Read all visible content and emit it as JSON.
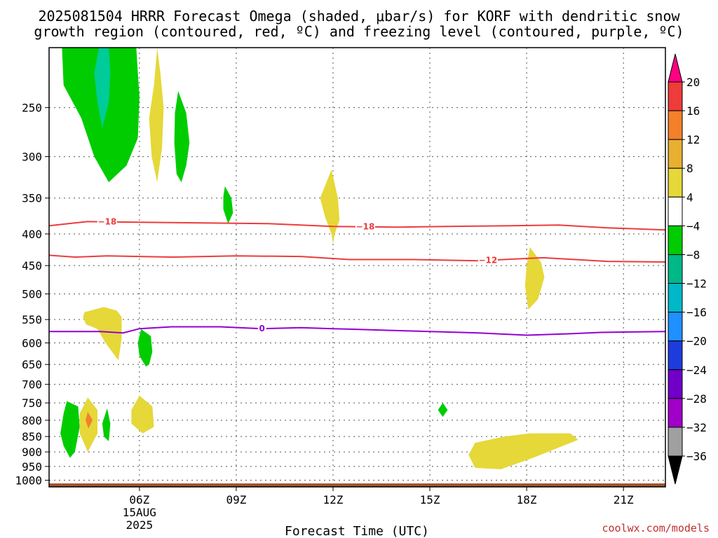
{
  "header": {
    "title_line1": "2025081504 HRRR Forecast Omega (shaded, μbar/s) for KORF with dendritic snow",
    "title_line2": "growth region (contoured, red, ºC) and freezing level (contoured, purple, ºC)"
  },
  "footer": {
    "credit": "coolwx.com/models"
  },
  "chart_data": {
    "type": "contour",
    "title": "2025081504 HRRR Forecast Omega (shaded, μbar/s) for KORF with dendritic snow growth region (contoured, red, ºC) and freezing level (contoured, purple, ºC)",
    "xlabel": "Forecast Time (UTC)",
    "ylabel": "",
    "x_axis": {
      "unit": "hours since 2025-08-15 00Z",
      "range": [
        3.2,
        22.3
      ],
      "ticks": [
        {
          "x": 6,
          "label": "06Z",
          "sublabel1": "15AUG",
          "sublabel2": "2025"
        },
        {
          "x": 9,
          "label": "09Z"
        },
        {
          "x": 12,
          "label": "12Z"
        },
        {
          "x": 15,
          "label": "15Z"
        },
        {
          "x": 18,
          "label": "18Z"
        },
        {
          "x": 21,
          "label": "21Z"
        }
      ]
    },
    "y_axis": {
      "unit": "hPa",
      "scale": "log",
      "reversed": true,
      "range": [
        1025,
        200
      ],
      "ticks": [
        250,
        300,
        350,
        400,
        450,
        500,
        550,
        600,
        650,
        700,
        750,
        800,
        850,
        900,
        950,
        1000
      ]
    },
    "grid": true,
    "ground": {
      "color": "#a0522d",
      "top_hpa": 1012
    },
    "colorbar": {
      "orientation": "vertical",
      "position": "right",
      "extend": "both",
      "labels": [
        "20",
        "16",
        "12",
        "8",
        "4",
        "−4",
        "−8",
        "−12",
        "−16",
        "−20",
        "−24",
        "−28",
        "−32",
        "−36"
      ],
      "colors": [
        "#ff0080",
        "#ee3b3b",
        "#f4802a",
        "#e8b030",
        "#e5d838",
        "#ffffff",
        "#00cc00",
        "#00b888",
        "#00b8c8",
        "#1e90ff",
        "#1e3cdc",
        "#7000c8",
        "#a000c8",
        "#a0a0a0",
        "#000000"
      ]
    },
    "shaded_regions": [
      {
        "band": "-8 to -4",
        "color": "#00cc00",
        "points": [
          [
            3.6,
            200
          ],
          [
            5.9,
            200
          ],
          [
            6.0,
            240
          ],
          [
            5.95,
            280
          ],
          [
            5.6,
            310
          ],
          [
            5.05,
            330
          ],
          [
            4.6,
            300
          ],
          [
            4.2,
            260
          ],
          [
            3.65,
            230
          ]
        ]
      },
      {
        "band": "-12 to -8",
        "color": "#00cc99",
        "points": [
          [
            4.75,
            200
          ],
          [
            5.05,
            200
          ],
          [
            5.1,
            220
          ],
          [
            5.05,
            245
          ],
          [
            4.85,
            270
          ],
          [
            4.7,
            245
          ],
          [
            4.6,
            220
          ]
        ]
      },
      {
        "band": "4 to 8",
        "color": "#e5d838",
        "points": [
          [
            6.55,
            200
          ],
          [
            6.65,
            220
          ],
          [
            6.75,
            250
          ],
          [
            6.7,
            290
          ],
          [
            6.55,
            330
          ],
          [
            6.38,
            300
          ],
          [
            6.3,
            260
          ],
          [
            6.45,
            230
          ]
        ]
      },
      {
        "band": "-8 to -4",
        "color": "#00cc00",
        "points": [
          [
            7.2,
            235
          ],
          [
            7.45,
            255
          ],
          [
            7.55,
            285
          ],
          [
            7.45,
            310
          ],
          [
            7.3,
            330
          ],
          [
            7.15,
            320
          ],
          [
            7.08,
            285
          ],
          [
            7.1,
            255
          ]
        ]
      },
      {
        "band": "-8 to -4",
        "color": "#00cc00",
        "points": [
          [
            8.65,
            335
          ],
          [
            8.85,
            350
          ],
          [
            8.9,
            370
          ],
          [
            8.75,
            385
          ],
          [
            8.6,
            365
          ],
          [
            8.6,
            348
          ]
        ]
      },
      {
        "band": "4 to 8",
        "color": "#e5d838",
        "points": [
          [
            11.95,
            315
          ],
          [
            12.15,
            350
          ],
          [
            12.2,
            380
          ],
          [
            12.05,
            400
          ],
          [
            12.0,
            415
          ],
          [
            11.95,
            400
          ],
          [
            11.75,
            375
          ],
          [
            11.6,
            350
          ]
        ]
      },
      {
        "band": "4 to 8",
        "color": "#e5d838",
        "points": [
          [
            4.25,
            545
          ],
          [
            4.3,
            535
          ],
          [
            4.9,
            525
          ],
          [
            5.3,
            532
          ],
          [
            5.45,
            545
          ],
          [
            5.45,
            590
          ],
          [
            5.35,
            640
          ],
          [
            5.15,
            620
          ],
          [
            4.95,
            600
          ],
          [
            4.7,
            570
          ],
          [
            4.35,
            560
          ]
        ]
      },
      {
        "band": "-8 to -4",
        "color": "#00cc00",
        "points": [
          [
            6.05,
            570
          ],
          [
            6.35,
            585
          ],
          [
            6.4,
            620
          ],
          [
            6.3,
            650
          ],
          [
            6.2,
            655
          ],
          [
            6.0,
            630
          ],
          [
            5.95,
            600
          ]
        ]
      },
      {
        "band": "4 to 8",
        "color": "#e5d838",
        "points": [
          [
            18.1,
            420
          ],
          [
            18.45,
            445
          ],
          [
            18.55,
            470
          ],
          [
            18.35,
            510
          ],
          [
            18.05,
            530
          ],
          [
            17.95,
            485
          ],
          [
            18.0,
            450
          ]
        ]
      },
      {
        "band": "-8 to -4",
        "color": "#00cc00",
        "points": [
          [
            3.75,
            745
          ],
          [
            4.1,
            760
          ],
          [
            4.15,
            820
          ],
          [
            4.0,
            900
          ],
          [
            3.85,
            920
          ],
          [
            3.65,
            880
          ],
          [
            3.55,
            840
          ],
          [
            3.65,
            780
          ]
        ]
      },
      {
        "band": "4 to 8",
        "color": "#e5d838",
        "points": [
          [
            4.4,
            735
          ],
          [
            4.7,
            770
          ],
          [
            4.7,
            840
          ],
          [
            4.4,
            900
          ],
          [
            4.15,
            840
          ],
          [
            4.15,
            780
          ]
        ]
      },
      {
        "band": "8 to 12",
        "color": "#f4802a",
        "points": [
          [
            4.4,
            775
          ],
          [
            4.55,
            800
          ],
          [
            4.42,
            825
          ],
          [
            4.33,
            800
          ]
        ]
      },
      {
        "band": "-8 to -4",
        "color": "#00cc00",
        "points": [
          [
            5.0,
            765
          ],
          [
            5.1,
            810
          ],
          [
            5.05,
            865
          ],
          [
            4.9,
            850
          ],
          [
            4.85,
            810
          ]
        ]
      },
      {
        "band": "4 to 8",
        "color": "#e5d838",
        "points": [
          [
            6.0,
            730
          ],
          [
            6.4,
            760
          ],
          [
            6.45,
            820
          ],
          [
            6.1,
            840
          ],
          [
            5.75,
            810
          ],
          [
            5.75,
            770
          ]
        ]
      },
      {
        "band": "-8 to -4",
        "color": "#00cc00",
        "points": [
          [
            15.4,
            750
          ],
          [
            15.55,
            770
          ],
          [
            15.4,
            790
          ],
          [
            15.25,
            770
          ]
        ]
      },
      {
        "band": "4 to 8",
        "color": "#e5d838",
        "points": [
          [
            16.4,
            870
          ],
          [
            17.3,
            850
          ],
          [
            18.1,
            840
          ],
          [
            19.35,
            840
          ],
          [
            19.6,
            860
          ],
          [
            18.2,
            920
          ],
          [
            17.2,
            960
          ],
          [
            16.4,
            955
          ],
          [
            16.2,
            910
          ]
        ]
      }
    ],
    "contour_lines": [
      {
        "level": -18,
        "label": "−18",
        "color": "#ee3b3b",
        "label_x": [
          5.0,
          13.0
        ],
        "points": [
          [
            3.2,
            388
          ],
          [
            4.4,
            382
          ],
          [
            6.0,
            383
          ],
          [
            8.0,
            384
          ],
          [
            10.0,
            385
          ],
          [
            12.0,
            389
          ],
          [
            14.0,
            390
          ],
          [
            15.5,
            389
          ],
          [
            17.5,
            388
          ],
          [
            19.0,
            387
          ],
          [
            20.5,
            391
          ],
          [
            22.3,
            394
          ]
        ]
      },
      {
        "level": -12,
        "label": "−12",
        "color": "#ee3b3b",
        "label_x": [
          2.0,
          16.8
        ],
        "points": [
          [
            3.2,
            433
          ],
          [
            4.0,
            436
          ],
          [
            5.0,
            434
          ],
          [
            7.0,
            436
          ],
          [
            9.0,
            434
          ],
          [
            11.0,
            435
          ],
          [
            12.5,
            440
          ],
          [
            14.5,
            440
          ],
          [
            16.5,
            442
          ],
          [
            18.5,
            437
          ],
          [
            20.5,
            443
          ],
          [
            22.3,
            444
          ]
        ]
      },
      {
        "level": 0,
        "label": "0",
        "color": "#9400d3",
        "label_x": [
          9.8
        ],
        "points": [
          [
            3.2,
            575
          ],
          [
            4.8,
            575
          ],
          [
            5.5,
            578
          ],
          [
            6.0,
            569
          ],
          [
            7.0,
            565
          ],
          [
            8.5,
            565
          ],
          [
            9.8,
            569
          ],
          [
            11.0,
            567
          ],
          [
            12.0,
            569
          ],
          [
            13.5,
            572
          ],
          [
            15.0,
            575
          ],
          [
            16.5,
            578
          ],
          [
            18.0,
            583
          ],
          [
            19.3,
            580
          ],
          [
            20.3,
            577
          ],
          [
            22.3,
            575
          ]
        ]
      }
    ]
  }
}
